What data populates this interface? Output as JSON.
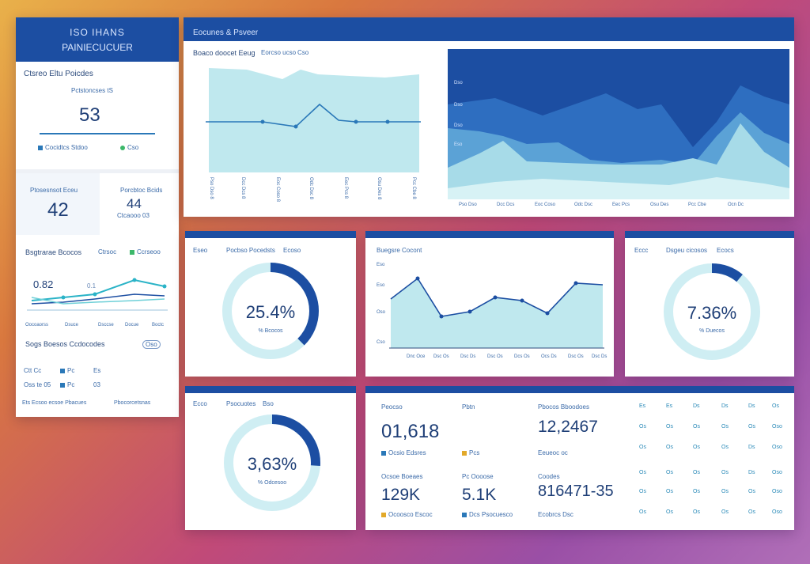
{
  "sidebar": {
    "header_line1": "ISO IHANS",
    "header_line2": "PAINIECUCUER",
    "kpi1": {
      "caption": "Ctsreo Eltu Poicdes",
      "sub": "Pctstoncses tS",
      "value": "53",
      "legend_a": "Cocidtcs Stdoo",
      "legend_b": "Cso"
    },
    "kpi2": {
      "left_value": "42",
      "right_label": "Porcbtoc Bcids",
      "right_value": "44",
      "right_sub": "Ctcaooo 03"
    },
    "mini_chart": {
      "title": "Bsgtrarae Bcocos",
      "legend_a": "Ctrsoc",
      "legend_b": "Ccrseoo",
      "ann1": "0.82",
      "ann2": "0.1",
      "x_labels": [
        "Oocoaorss",
        "Dsuce",
        "Dsccse",
        "Docue",
        "Boctc"
      ]
    },
    "list": {
      "title": "Sogs Boesos Ccdocodes",
      "toggle": "Oso",
      "rows": [
        {
          "a": "Ctt Cc",
          "b": "Pc",
          "c": "Es"
        },
        {
          "a": "Oss te 05",
          "b": "Pc",
          "c": "03"
        }
      ],
      "footer_a": "Ets Ecsoo ecsoe Pbacues",
      "footer_b": "Pbocorcetsnas"
    }
  },
  "top_panel": {
    "title": "Eocunes & Psveer",
    "area_chart_caption": "Boaco doocet Eeug",
    "area_chart_sub": "Eorcso ucso",
    "date": "Cso",
    "right_y_labels": [
      "Dso",
      "Dso",
      "Dso",
      "Eso"
    ],
    "right_x_labels": [
      "Pso Dso",
      "Dcc Dcs",
      "Eoc Coso",
      "Odc Dsc",
      "Eec Pcs",
      "Osu Des",
      "Pcc Cbe",
      "Ocn Dc"
    ]
  },
  "donut1": {
    "tab": "Eseo",
    "title": "Pocbso Pocedsts",
    "badge": "Ecoso",
    "value": "25.4%",
    "sub": "% Bcocos"
  },
  "line_card": {
    "title": "Buegsre Cocont",
    "y_labels": [
      "Eso",
      "Eso",
      "Oso",
      "Cso"
    ],
    "x_labels": [
      "Dnc Oce",
      "Dsc Os",
      "Dsc Ds",
      "Dsc Os",
      "Dcs Os",
      "Ocs Ds",
      "Dsc Os",
      "Dsc Ds"
    ]
  },
  "donut2": {
    "tab": "Eccc",
    "title": "Dsgeu cicosos",
    "badge": "Ecocs",
    "value": "7.36%",
    "sub": "% Duecos"
  },
  "donut3": {
    "tab": "Ecco",
    "title": "Psocuotes",
    "badge": "Bso",
    "value": "3,63%",
    "sub": "% Odcesoo"
  },
  "stats": {
    "cells": [
      {
        "label": "Peocso",
        "value": "01,618",
        "foot": "Ocsio Edsres"
      },
      {
        "label": "Pbtn",
        "value": "",
        "foot": "Pcs"
      },
      {
        "label": "Pbocos Bboodoes",
        "value": "12,2467",
        "foot": "Eeueoc oc"
      },
      {
        "label": "Ocsoe Boeaes",
        "value": "129K",
        "foot": "Ocoosco Escoc"
      },
      {
        "label": "Pc Oooose",
        "value": "5.1K",
        "foot": "Dcs Psocuesco"
      },
      {
        "label": "Coodes",
        "value": "816471-35",
        "foot": "Ecobrcs Dsc"
      }
    ],
    "grid_rows": [
      [
        "Es",
        "Es",
        "Ds",
        "Ds",
        "Ds",
        "Os"
      ],
      [
        "Os",
        "Os",
        "Os",
        "Os",
        "Os",
        "Oso"
      ],
      [
        "Os",
        "Os",
        "Os",
        "Os",
        "Ds",
        "Oso"
      ],
      [
        "Os",
        "Os",
        "Os",
        "Os",
        "Ds",
        "Oso"
      ],
      [
        "Os",
        "Os",
        "Os",
        "Os",
        "Os",
        "Oso"
      ],
      [
        "Os",
        "Os",
        "Os",
        "Os",
        "Os",
        "Oso"
      ]
    ]
  },
  "colors": {
    "accent": "#1c4ea2",
    "teal": "#bfe8ee",
    "donut_track": "#cfeef3"
  }
}
